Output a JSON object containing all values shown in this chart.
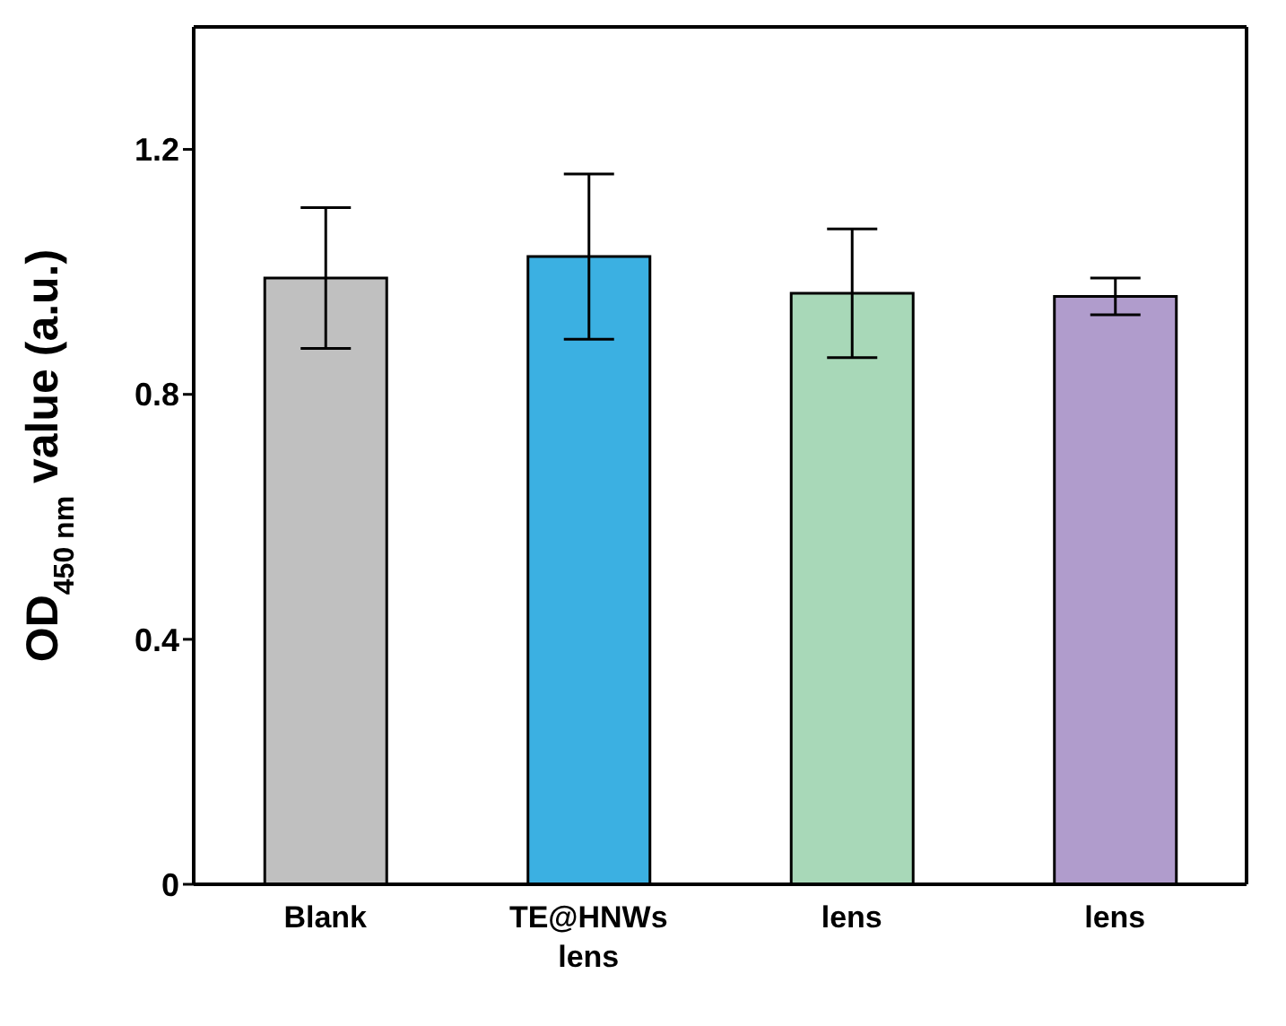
{
  "chart_data": {
    "type": "bar",
    "ylabel": "OD$_{450 nm}$ value (a.u.)",
    "categories": [
      "Blank",
      "TE@HNWs lens",
      "lens",
      "lens"
    ],
    "values": [
      0.99,
      1.025,
      0.965,
      0.96
    ],
    "colors": [
      "#c0c0c0",
      "#3bb0e2",
      "#a8d8b8",
      "#b09ccc"
    ],
    "errors": [
      0.115,
      0.135,
      0.105,
      0.03
    ],
    "ylim": [
      0,
      1.4
    ],
    "yticks": [
      {
        "value": 0,
        "label": "0"
      },
      0.4,
      0.8,
      1.2
    ]
  }
}
